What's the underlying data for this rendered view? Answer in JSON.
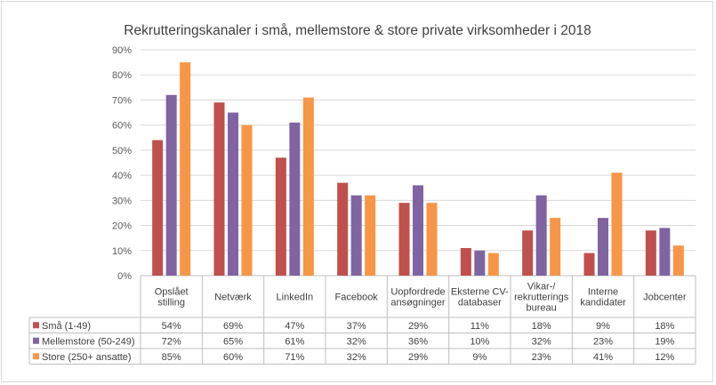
{
  "chart_data": {
    "type": "bar",
    "title": "Rekrutteringskanaler i små, mellemstore & store private virksomheder  i 2018",
    "categories": [
      [
        "Opslået",
        "stilling"
      ],
      [
        "Netværk"
      ],
      [
        "LinkedIn"
      ],
      [
        "Facebook"
      ],
      [
        "Uopfordrede",
        "ansøgninger"
      ],
      [
        "Eksterne CV-",
        "databaser"
      ],
      [
        "Vikar-/",
        "rekrutterings",
        "bureau"
      ],
      [
        "Interne",
        "kandidater"
      ],
      [
        "Jobcenter"
      ]
    ],
    "series": [
      {
        "name": "Små (1-49)",
        "color": "#c0504d",
        "values": [
          54,
          69,
          47,
          37,
          29,
          11,
          18,
          9,
          18
        ]
      },
      {
        "name": "Mellemstore (50-249)",
        "color": "#8064a2",
        "values": [
          72,
          65,
          61,
          32,
          36,
          10,
          32,
          23,
          19
        ]
      },
      {
        "name": "Store (250+ ansatte)",
        "color": "#f79646",
        "values": [
          85,
          60,
          71,
          32,
          29,
          9,
          23,
          41,
          12
        ]
      }
    ],
    "yticks": [
      "0%",
      "10%",
      "20%",
      "30%",
      "40%",
      "50%",
      "60%",
      "70%",
      "80%",
      "90%"
    ],
    "ylim": [
      0,
      90
    ],
    "value_suffix": "%",
    "legend_placement": "data-table",
    "grid": true
  }
}
